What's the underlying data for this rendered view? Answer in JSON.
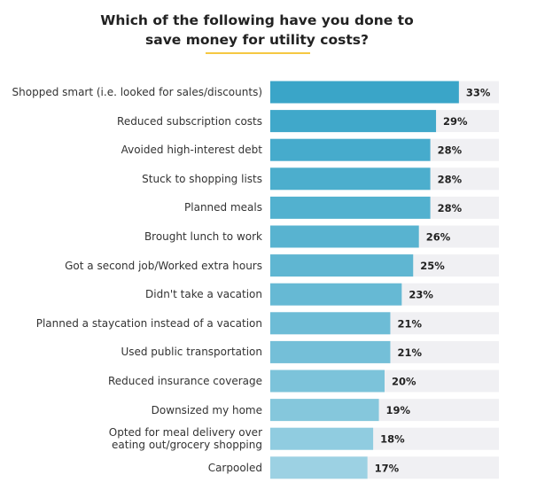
{
  "chart_data": {
    "type": "bar",
    "orientation": "horizontal",
    "title": "Which of the following have you done to save money for utility costs?",
    "categories": [
      "Shopped smart (i.e. looked for sales/discounts)",
      "Reduced subscription costs",
      "Avoided high-interest debt",
      "Stuck to shopping lists",
      "Planned meals",
      "Brought lunch to work",
      "Got a second job/Worked extra hours",
      "Didn't take a vacation",
      "Planned a staycation instead of a vacation",
      "Used public transportation",
      "Reduced insurance coverage",
      "Downsized my home",
      "Opted for meal delivery over\neating out/grocery shopping",
      "Carpooled"
    ],
    "values": [
      33,
      29,
      28,
      28,
      28,
      26,
      25,
      23,
      21,
      21,
      20,
      19,
      18,
      17
    ],
    "value_labels": [
      "33%",
      "29%",
      "28%",
      "28%",
      "28%",
      "26%",
      "25%",
      "23%",
      "21%",
      "21%",
      "20%",
      "19%",
      "18%",
      "17%"
    ],
    "colors": [
      "#3aa5c8",
      "#40a8ca",
      "#46abcc",
      "#4caecd",
      "#52b1cf",
      "#58b3d0",
      "#5fb6d2",
      "#66b9d4",
      "#6dbcd6",
      "#74bfd8",
      "#7cc3da",
      "#85c7dc",
      "#90cce0",
      "#9cd1e3"
    ],
    "track_color": "#f0f0f3",
    "xlim": [
      0,
      40
    ]
  }
}
